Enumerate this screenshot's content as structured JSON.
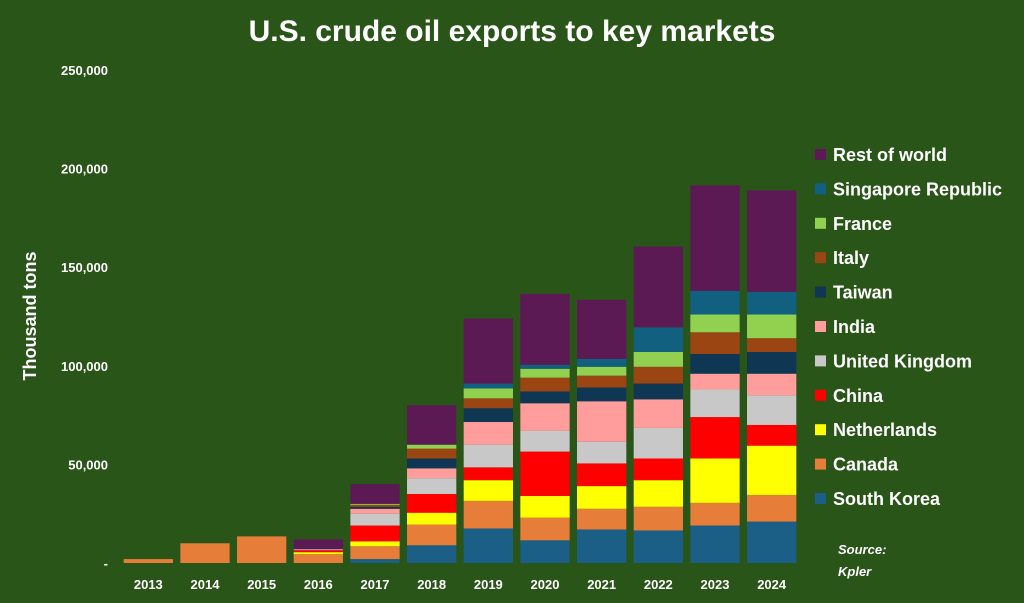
{
  "chart_data": {
    "type": "bar",
    "stacked": true,
    "title": "U.S. crude oil exports to key markets",
    "ylabel": "Thousand tons",
    "xlabel": "",
    "ylim": [
      0,
      250000
    ],
    "yticks": [
      "-",
      "50,000",
      "100,000",
      "150,000",
      "200,000",
      "250,000"
    ],
    "categories": [
      "2013",
      "2014",
      "2015",
      "2016",
      "2017",
      "2018",
      "2019",
      "2020",
      "2021",
      "2022",
      "2023",
      "2024"
    ],
    "legend_position": "right",
    "series": [
      {
        "name": "South Korea",
        "color": "#1b5e86",
        "values": [
          0,
          0,
          0,
          0,
          2000,
          9000,
          17500,
          11500,
          17000,
          16500,
          19000,
          21000
        ]
      },
      {
        "name": "Canada",
        "color": "#e67d39",
        "values": [
          2000,
          10000,
          13500,
          4500,
          6500,
          10500,
          14000,
          11500,
          10500,
          12000,
          11500,
          13500
        ]
      },
      {
        "name": "Netherlands",
        "color": "#ffff00",
        "values": [
          0,
          0,
          0,
          1000,
          2500,
          6000,
          10500,
          11000,
          11500,
          13500,
          22500,
          25000
        ]
      },
      {
        "name": "China",
        "color": "#ff0000",
        "values": [
          0,
          0,
          0,
          1000,
          8000,
          9500,
          6500,
          22500,
          11500,
          11000,
          21000,
          10500
        ]
      },
      {
        "name": "United Kingdom",
        "color": "#c8c8c8",
        "values": [
          0,
          0,
          0,
          500,
          6000,
          8000,
          11500,
          10500,
          11000,
          15500,
          14000,
          15000
        ]
      },
      {
        "name": "India",
        "color": "#ff9d9d",
        "values": [
          0,
          0,
          0,
          0,
          2500,
          5000,
          11500,
          14000,
          20500,
          14500,
          8000,
          11000
        ]
      },
      {
        "name": "Taiwan",
        "color": "#0f3652",
        "values": [
          0,
          0,
          0,
          0,
          1000,
          5000,
          7000,
          6000,
          7000,
          8000,
          10000,
          11000
        ]
      },
      {
        "name": "Italy",
        "color": "#9b4513",
        "values": [
          0,
          0,
          0,
          0,
          1000,
          5000,
          5000,
          7000,
          6000,
          8500,
          11000,
          7000
        ]
      },
      {
        "name": "France",
        "color": "#92d050",
        "values": [
          0,
          0,
          0,
          0,
          500,
          2000,
          5000,
          4500,
          4500,
          7500,
          9000,
          12000
        ]
      },
      {
        "name": "Singapore Republic",
        "color": "#116080",
        "values": [
          0,
          0,
          0,
          0,
          0,
          0,
          2500,
          2000,
          4000,
          12500,
          12000,
          11500
        ]
      },
      {
        "name": "Rest of world",
        "color": "#5c1a54",
        "values": [
          0,
          0,
          0,
          5000,
          10000,
          20000,
          33000,
          36000,
          30000,
          41000,
          53500,
          51500
        ]
      }
    ]
  },
  "source_text": "Source:",
  "source_name": "Kpler"
}
